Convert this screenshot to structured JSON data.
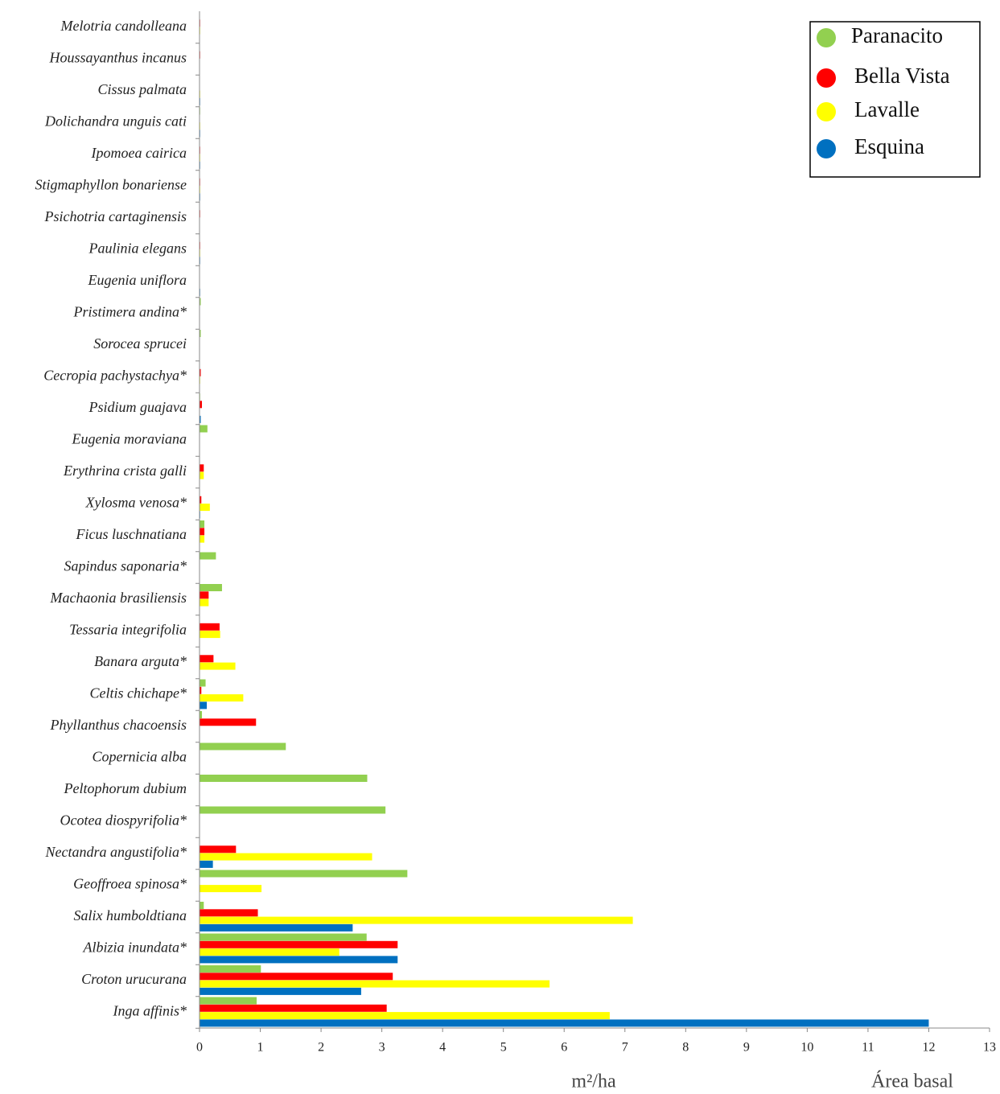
{
  "chart_data": {
    "type": "hbar",
    "categories": [
      "Melotria candolleana",
      "Houssayanthus incanus",
      "Cissus palmata",
      "Dolichandra unguis cati",
      "Ipomoea cairica",
      "Stigmaphyllon bonariense",
      "Psichotria cartaginensis",
      "Paulinia elegans",
      "Eugenia uniflora",
      "Pristimera andina*",
      "Sorocea sprucei",
      "Cecropia pachystachya*",
      "Psidium guajava",
      "Eugenia moraviana",
      "Erythrina crista galli",
      "Xylosma venosa*",
      "Ficus luschnatiana",
      "Sapindus saponaria*",
      "Machaonia brasiliensis",
      "Tessaria integrifolia",
      "Banara arguta*",
      "Celtis chichape*",
      "Phyllanthus  chacoensis",
      "Copernicia alba",
      "Peltophorum dubium",
      "Ocotea diospyrifolia*",
      "Nectandra angustifolia*",
      "Geoffroea spinosa*",
      "Salix humboldtiana",
      "Albizia inundata*",
      "Croton urucurana",
      "Inga affinis*"
    ],
    "series": [
      {
        "name": "Paranacito",
        "color": "#92d050",
        "values": [
          0,
          0,
          0,
          0.01,
          0,
          0,
          0,
          0,
          0,
          0.02,
          0.02,
          0,
          0.01,
          0.13,
          0,
          0,
          0.08,
          0.27,
          0.37,
          0,
          0,
          0.1,
          0.04,
          1.42,
          2.76,
          3.06,
          0,
          3.42,
          0.07,
          2.75,
          1.01,
          0.94
        ]
      },
      {
        "name": "Bella Vista",
        "color": "#ff0000",
        "values": [
          0.01,
          0.01,
          0,
          0,
          0.01,
          0.01,
          0.01,
          0.01,
          0,
          0,
          0,
          0.02,
          0.04,
          0,
          0.07,
          0.03,
          0.08,
          0,
          0.15,
          0.33,
          0.23,
          0.03,
          0.93,
          0,
          0,
          0,
          0.6,
          0,
          0.96,
          3.26,
          3.18,
          3.08
        ]
      },
      {
        "name": "Lavalle",
        "color": "#ffff00",
        "values": [
          0.01,
          0,
          0.01,
          0.01,
          0.01,
          0.01,
          0,
          0.01,
          0,
          0,
          0,
          0.01,
          0,
          0,
          0.07,
          0.17,
          0.08,
          0,
          0.15,
          0.34,
          0.59,
          0.72,
          0,
          0,
          0,
          0,
          2.84,
          1.02,
          7.13,
          2.3,
          5.76,
          6.75
        ]
      },
      {
        "name": "Esquina",
        "color": "#0070c0",
        "values": [
          0,
          0,
          0.01,
          0.01,
          0.01,
          0.01,
          0,
          0.01,
          0.01,
          0,
          0,
          0,
          0.02,
          0,
          0,
          0.01,
          0,
          0,
          0,
          0,
          0,
          0.12,
          0,
          0,
          0,
          0,
          0.22,
          0,
          2.52,
          3.26,
          2.66,
          12
        ]
      }
    ],
    "xlabel": "m²/ha",
    "xlabel2": "Área basal",
    "xlim": [
      0,
      13
    ],
    "xticks": [
      0,
      1,
      2,
      3,
      4,
      5,
      6,
      7,
      8,
      9,
      10,
      11,
      12,
      13
    ],
    "legend": "upper right"
  }
}
